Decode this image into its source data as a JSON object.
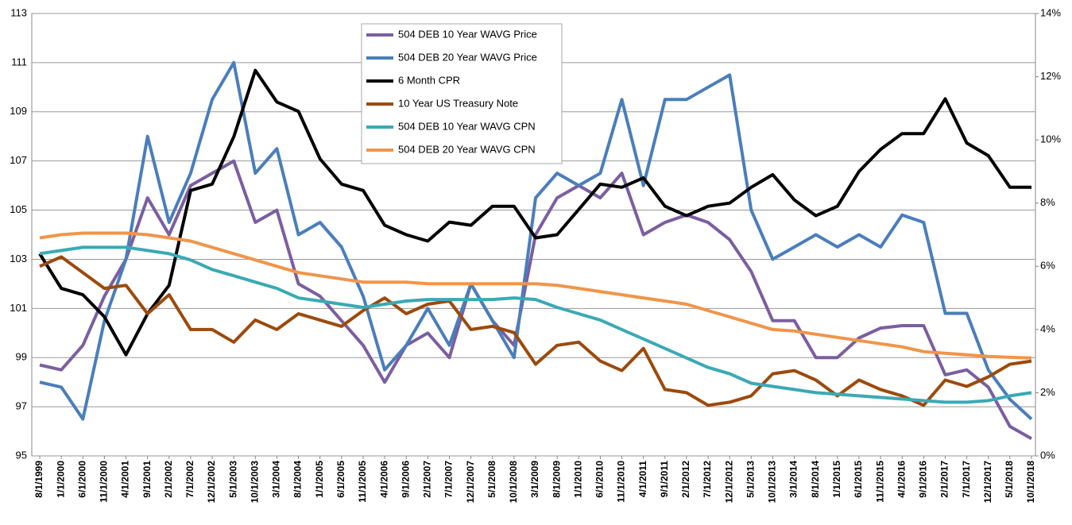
{
  "chart_data": {
    "type": "line",
    "categories": [
      "8/1/1999",
      "1/1/2000",
      "6/1/2000",
      "11/1/2000",
      "4/1/2001",
      "9/1/2001",
      "2/1/2002",
      "7/1/2002",
      "12/1/2002",
      "5/1/2003",
      "10/1/2003",
      "3/1/2004",
      "8/1/2004",
      "1/1/2005",
      "6/1/2005",
      "11/1/2005",
      "4/1/2006",
      "9/1/2006",
      "2/1/2007",
      "7/1/2007",
      "12/1/2007",
      "5/1/2008",
      "10/1/2008",
      "3/1/2009",
      "8/1/2009",
      "1/1/2010",
      "6/1/2010",
      "11/1/2010",
      "4/1/2011",
      "9/1/2011",
      "2/1/2012",
      "7/1/2012",
      "12/1/2012",
      "5/1/2013",
      "10/1/2013",
      "3/1/2014",
      "8/1/2014",
      "1/1/2015",
      "6/1/2015",
      "11/1/2015",
      "4/1/2016",
      "9/1/2016",
      "2/1/2017",
      "7/1/2017",
      "12/1/2017",
      "5/1/2018",
      "10/1/2018"
    ],
    "series": [
      {
        "name": "504 DEB 10 Year WAVG Price",
        "color": "#7b5ea0",
        "values": [
          98.7,
          98.5,
          99.5,
          101.5,
          103,
          105.5,
          104,
          106,
          106.5,
          107,
          104.5,
          105,
          102,
          101.5,
          100.5,
          99.5,
          98,
          99.5,
          100,
          99,
          102,
          100.5,
          99.5,
          104,
          105.5,
          106,
          105.5,
          106.5,
          104,
          104.5,
          104.8,
          104.5,
          103.8,
          102.5,
          100.5,
          100.5,
          99,
          99,
          99.8,
          100.2,
          100.3,
          100.3,
          98.3,
          98.5,
          97.8,
          96.2,
          95.7
        ]
      },
      {
        "name": "504 DEB 20 Year WAVG Price",
        "color": "#4a7ebb",
        "values": [
          98,
          97.8,
          96.5,
          100.5,
          103,
          108,
          104.5,
          106.5,
          109.5,
          111,
          106.5,
          107.5,
          104,
          104.5,
          103.5,
          101.5,
          98.5,
          99.5,
          101,
          99.5,
          102,
          100.5,
          99,
          105.5,
          106.5,
          106,
          106.5,
          109.5,
          106,
          109.5,
          109.5,
          110,
          110.5,
          105,
          103,
          103.5,
          104,
          103.5,
          104,
          103.5,
          104.8,
          104.5,
          100.8,
          100.8,
          98.5,
          97.3,
          96.5
        ]
      },
      {
        "name": "6 Month CPR",
        "color": "#000000",
        "axis": "y2",
        "values": [
          6.4,
          5.3,
          5.1,
          4.4,
          3.2,
          4.5,
          5.4,
          8.4,
          8.6,
          10.1,
          12.2,
          11.2,
          10.9,
          9.4,
          8.6,
          8.4,
          7.3,
          7.0,
          6.8,
          7.4,
          7.3,
          7.9,
          7.9,
          6.9,
          7.0,
          7.8,
          8.6,
          8.5,
          8.8,
          7.9,
          7.6,
          7.9,
          8.0,
          8.5,
          8.9,
          8.1,
          7.6,
          7.9,
          9.0,
          9.7,
          10.2,
          10.2,
          11.3,
          9.9,
          9.5,
          8.5,
          8.5
        ]
      },
      {
        "name": "10 Year US Treasury Note",
        "color": "#9c4a0c",
        "axis": "y2",
        "values": [
          6.0,
          6.3,
          5.8,
          5.3,
          5.4,
          4.5,
          5.1,
          4.0,
          4.0,
          3.6,
          4.3,
          4.0,
          4.5,
          4.3,
          4.1,
          4.6,
          5.0,
          4.5,
          4.8,
          4.9,
          4.0,
          4.1,
          3.9,
          2.9,
          3.5,
          3.6,
          3.0,
          2.7,
          3.4,
          2.1,
          2.0,
          1.6,
          1.7,
          1.9,
          2.6,
          2.7,
          2.4,
          1.9,
          2.4,
          2.1,
          1.9,
          1.6,
          2.4,
          2.2,
          2.5,
          2.9,
          3.0
        ]
      },
      {
        "name": "504 DEB 10 Year WAVG CPN",
        "color": "#3aa9b5",
        "axis": "y2",
        "values": [
          6.4,
          6.5,
          6.6,
          6.6,
          6.6,
          6.5,
          6.4,
          6.2,
          5.9,
          5.7,
          5.5,
          5.3,
          5.0,
          4.9,
          4.8,
          4.7,
          4.8,
          4.9,
          4.95,
          4.95,
          4.95,
          4.95,
          5.0,
          4.95,
          4.7,
          4.5,
          4.3,
          4.0,
          3.7,
          3.4,
          3.1,
          2.8,
          2.6,
          2.3,
          2.2,
          2.1,
          2.0,
          1.95,
          1.9,
          1.85,
          1.8,
          1.75,
          1.7,
          1.7,
          1.75,
          1.9,
          2.0
        ]
      },
      {
        "name": "504 DEB 20 Year WAVG CPN",
        "color": "#f0954a",
        "axis": "y2",
        "values": [
          6.9,
          7.0,
          7.05,
          7.05,
          7.05,
          7.0,
          6.9,
          6.8,
          6.6,
          6.4,
          6.2,
          6.0,
          5.8,
          5.7,
          5.6,
          5.5,
          5.5,
          5.5,
          5.45,
          5.45,
          5.45,
          5.45,
          5.45,
          5.45,
          5.4,
          5.3,
          5.2,
          5.1,
          5.0,
          4.9,
          4.8,
          4.6,
          4.4,
          4.2,
          4.0,
          3.95,
          3.85,
          3.75,
          3.65,
          3.55,
          3.45,
          3.3,
          3.25,
          3.2,
          3.15,
          3.12,
          3.1
        ]
      }
    ],
    "ylim": [
      95,
      113
    ],
    "yticks": [
      95,
      97,
      99,
      101,
      103,
      105,
      107,
      109,
      111,
      113
    ],
    "y2lim": [
      0,
      14
    ],
    "y2ticks": [
      {
        "value": 0,
        "label": "0%"
      },
      {
        "value": 2,
        "label": "2%"
      },
      {
        "value": 4,
        "label": "4%"
      },
      {
        "value": 6,
        "label": "6%"
      },
      {
        "value": 8,
        "label": "8%"
      },
      {
        "value": 10,
        "label": "10%"
      },
      {
        "value": 12,
        "label": "12%"
      },
      {
        "value": 14,
        "label": "14%"
      }
    ],
    "grid": true,
    "legend": "top"
  }
}
